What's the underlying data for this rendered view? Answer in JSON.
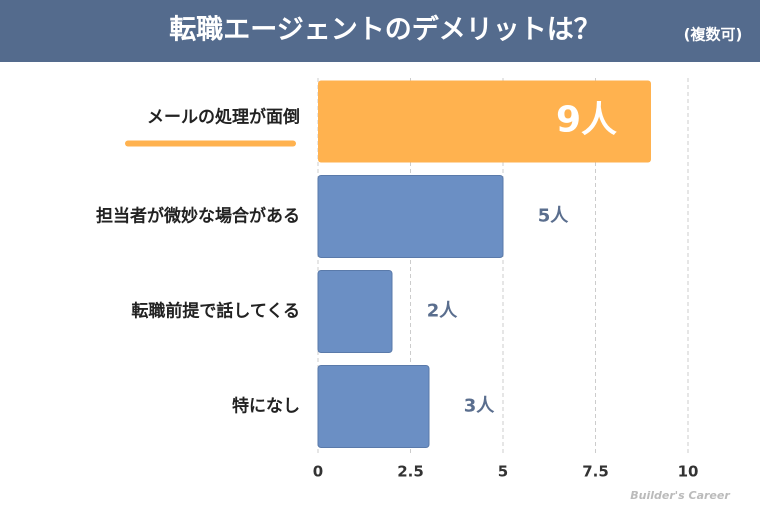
{
  "chart_data": {
    "type": "bar",
    "orientation": "horizontal",
    "title": "転職エージェントのデメリットは？",
    "subtitle": "(複数可)",
    "categories": [
      "メールの処理が面倒",
      "担当者が微妙な場合がある",
      "転職前提で話してくる",
      "特になし"
    ],
    "values": [
      9,
      5,
      2,
      3
    ],
    "value_labels": [
      "9人",
      "5人",
      "2人",
      "3人"
    ],
    "colors": [
      "#ffb24f",
      "#6b8fc4",
      "#6b8fc4",
      "#6b8fc4"
    ],
    "xlim": [
      0,
      10
    ],
    "xticks": [
      0,
      2.5,
      5,
      7.5,
      10
    ],
    "grid": true,
    "watermark": "Builder's Career"
  }
}
